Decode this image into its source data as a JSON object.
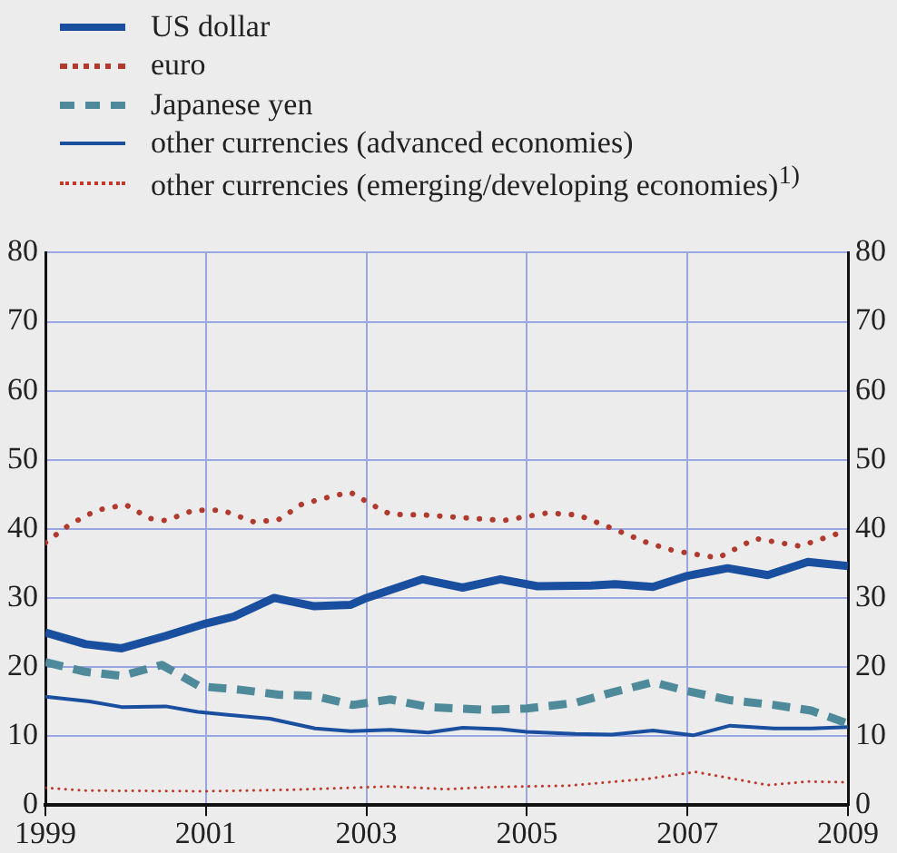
{
  "chart_data": {
    "type": "line",
    "legend": "top left",
    "grid": true,
    "xlim": [
      1999,
      2009
    ],
    "xticks": [
      1999,
      2001,
      2003,
      2005,
      2007,
      2009
    ],
    "ylim": [
      0,
      80
    ],
    "yticks": [
      0,
      10,
      20,
      30,
      40,
      50,
      60,
      70,
      80
    ],
    "y2lim": [
      0,
      80
    ],
    "y2ticks": [
      0,
      10,
      20,
      30,
      40,
      50,
      60,
      70,
      80
    ],
    "marker": "none",
    "series": [
      {
        "name": "US dollar",
        "color": "#1a4f9f",
        "line_style": "solid",
        "x": [
          1999,
          1999.5,
          1999.95,
          2000.5,
          2001,
          2001.35,
          2001.85,
          2002.35,
          2002.8,
          2003,
          2003.7,
          2004.2,
          2004.67,
          2005.13,
          2005.8,
          2006.1,
          2006.57,
          2007,
          2007.5,
          2008,
          2008.5,
          2009
        ],
        "values": [
          25.0,
          23.3,
          22.7,
          24.5,
          26.3,
          27.3,
          30.0,
          28.8,
          29.0,
          30.0,
          32.7,
          31.5,
          32.7,
          31.7,
          31.8,
          32.0,
          31.6,
          33.2,
          34.3,
          33.3,
          35.2,
          34.6
        ]
      },
      {
        "name": "euro",
        "color": "#b03a2e",
        "line_style": "dotted",
        "x": [
          1999,
          1999.3,
          1999.64,
          2000,
          2000.3,
          2000.5,
          2000.85,
          2001.2,
          2001.6,
          2001.9,
          2002.2,
          2002.6,
          2002.8,
          2003.1,
          2003.3,
          2003.74,
          2004.36,
          2004.7,
          2005.25,
          2005.64,
          2006.14,
          2006.5,
          2006.84,
          2007.38,
          2007.85,
          2008.4,
          2009
        ],
        "values": [
          38.0,
          40.6,
          42.7,
          43.5,
          41.5,
          41.2,
          42.7,
          42.7,
          41.0,
          41.3,
          43.6,
          44.8,
          45.3,
          43.3,
          42.1,
          42.0,
          41.5,
          41.2,
          42.3,
          42.0,
          39.7,
          38.0,
          36.8,
          35.8,
          38.6,
          37.5,
          39.8
        ]
      },
      {
        "name": "Japanese yen",
        "color": "#4e8a9a",
        "line_style": "dashed",
        "x": [
          1999,
          1999.5,
          1999.95,
          2000.45,
          2000.92,
          2001.43,
          2001.9,
          2002.36,
          2002.83,
          2003.3,
          2003.77,
          2004.5,
          2005,
          2005.6,
          2006.06,
          2006.57,
          2007,
          2007.53,
          2008.08,
          2008.54,
          2009
        ],
        "values": [
          20.7,
          19.3,
          18.7,
          20.3,
          17.2,
          16.7,
          16.0,
          15.8,
          14.5,
          15.3,
          14.2,
          13.8,
          14.0,
          14.8,
          16.3,
          17.8,
          16.5,
          15.2,
          14.5,
          13.7,
          11.8
        ]
      },
      {
        "name": "other currencies (advanced economies)",
        "color": "#1a4f9f",
        "line_style": "solid",
        "x": [
          1999,
          1999.55,
          1999.95,
          2000.5,
          2000.9,
          2001.43,
          2001.8,
          2002.36,
          2002.8,
          2003.3,
          2003.77,
          2004.2,
          2004.67,
          2005,
          2005.6,
          2006.06,
          2006.57,
          2007.07,
          2007.53,
          2008.08,
          2008.54,
          2009
        ],
        "values": [
          15.7,
          15.0,
          14.2,
          14.3,
          13.5,
          12.9,
          12.5,
          11.1,
          10.7,
          10.9,
          10.5,
          11.2,
          11.0,
          10.6,
          10.3,
          10.2,
          10.8,
          10.1,
          11.5,
          11.1,
          11.1,
          11.3
        ]
      },
      {
        "name": "other currencies (emerging/developing economies)$^{1)}$",
        "color": "#c0392b",
        "line_style": "dotted",
        "x": [
          1999,
          1999.5,
          2001,
          2002,
          2003.3,
          2004,
          2004.5,
          2005.5,
          2006.5,
          2007.1,
          2008,
          2008.5,
          2009
        ],
        "values": [
          2.5,
          2.1,
          2.0,
          2.2,
          2.7,
          2.3,
          2.6,
          2.8,
          3.8,
          4.8,
          2.9,
          3.4,
          3.3
        ]
      }
    ]
  }
}
